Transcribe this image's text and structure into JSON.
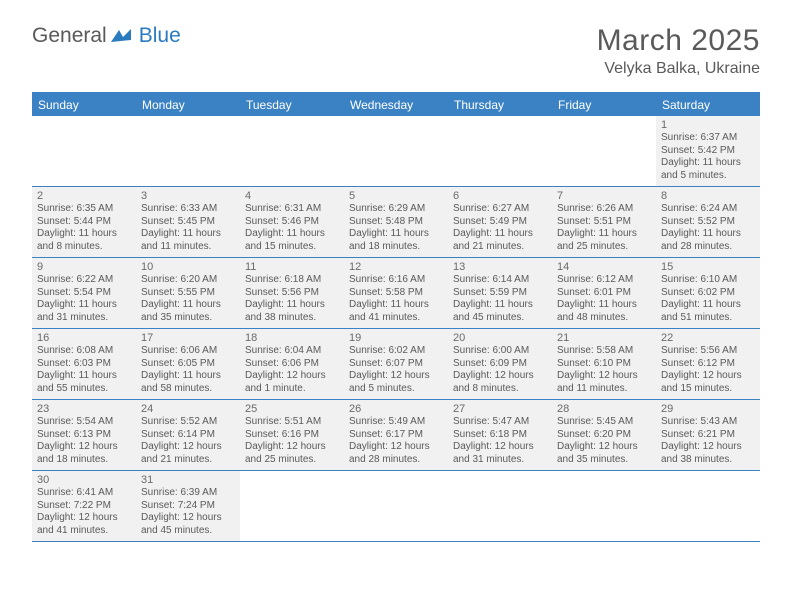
{
  "logo": {
    "text1": "General",
    "text2": "Blue"
  },
  "title": "March 2025",
  "location": "Velyka Balka, Ukraine",
  "colors": {
    "header_blue": "#3b82c4",
    "cell_bg": "#f1f1f1",
    "text": "#5a5a5a",
    "logo_blue": "#2b7bbf"
  },
  "weekdays": [
    "Sunday",
    "Monday",
    "Tuesday",
    "Wednesday",
    "Thursday",
    "Friday",
    "Saturday"
  ],
  "weeks": [
    [
      null,
      null,
      null,
      null,
      null,
      null,
      {
        "n": "1",
        "sr": "Sunrise: 6:37 AM",
        "ss": "Sunset: 5:42 PM",
        "d1": "Daylight: 11 hours",
        "d2": "and 5 minutes."
      }
    ],
    [
      {
        "n": "2",
        "sr": "Sunrise: 6:35 AM",
        "ss": "Sunset: 5:44 PM",
        "d1": "Daylight: 11 hours",
        "d2": "and 8 minutes."
      },
      {
        "n": "3",
        "sr": "Sunrise: 6:33 AM",
        "ss": "Sunset: 5:45 PM",
        "d1": "Daylight: 11 hours",
        "d2": "and 11 minutes."
      },
      {
        "n": "4",
        "sr": "Sunrise: 6:31 AM",
        "ss": "Sunset: 5:46 PM",
        "d1": "Daylight: 11 hours",
        "d2": "and 15 minutes."
      },
      {
        "n": "5",
        "sr": "Sunrise: 6:29 AM",
        "ss": "Sunset: 5:48 PM",
        "d1": "Daylight: 11 hours",
        "d2": "and 18 minutes."
      },
      {
        "n": "6",
        "sr": "Sunrise: 6:27 AM",
        "ss": "Sunset: 5:49 PM",
        "d1": "Daylight: 11 hours",
        "d2": "and 21 minutes."
      },
      {
        "n": "7",
        "sr": "Sunrise: 6:26 AM",
        "ss": "Sunset: 5:51 PM",
        "d1": "Daylight: 11 hours",
        "d2": "and 25 minutes."
      },
      {
        "n": "8",
        "sr": "Sunrise: 6:24 AM",
        "ss": "Sunset: 5:52 PM",
        "d1": "Daylight: 11 hours",
        "d2": "and 28 minutes."
      }
    ],
    [
      {
        "n": "9",
        "sr": "Sunrise: 6:22 AM",
        "ss": "Sunset: 5:54 PM",
        "d1": "Daylight: 11 hours",
        "d2": "and 31 minutes."
      },
      {
        "n": "10",
        "sr": "Sunrise: 6:20 AM",
        "ss": "Sunset: 5:55 PM",
        "d1": "Daylight: 11 hours",
        "d2": "and 35 minutes."
      },
      {
        "n": "11",
        "sr": "Sunrise: 6:18 AM",
        "ss": "Sunset: 5:56 PM",
        "d1": "Daylight: 11 hours",
        "d2": "and 38 minutes."
      },
      {
        "n": "12",
        "sr": "Sunrise: 6:16 AM",
        "ss": "Sunset: 5:58 PM",
        "d1": "Daylight: 11 hours",
        "d2": "and 41 minutes."
      },
      {
        "n": "13",
        "sr": "Sunrise: 6:14 AM",
        "ss": "Sunset: 5:59 PM",
        "d1": "Daylight: 11 hours",
        "d2": "and 45 minutes."
      },
      {
        "n": "14",
        "sr": "Sunrise: 6:12 AM",
        "ss": "Sunset: 6:01 PM",
        "d1": "Daylight: 11 hours",
        "d2": "and 48 minutes."
      },
      {
        "n": "15",
        "sr": "Sunrise: 6:10 AM",
        "ss": "Sunset: 6:02 PM",
        "d1": "Daylight: 11 hours",
        "d2": "and 51 minutes."
      }
    ],
    [
      {
        "n": "16",
        "sr": "Sunrise: 6:08 AM",
        "ss": "Sunset: 6:03 PM",
        "d1": "Daylight: 11 hours",
        "d2": "and 55 minutes."
      },
      {
        "n": "17",
        "sr": "Sunrise: 6:06 AM",
        "ss": "Sunset: 6:05 PM",
        "d1": "Daylight: 11 hours",
        "d2": "and 58 minutes."
      },
      {
        "n": "18",
        "sr": "Sunrise: 6:04 AM",
        "ss": "Sunset: 6:06 PM",
        "d1": "Daylight: 12 hours",
        "d2": "and 1 minute."
      },
      {
        "n": "19",
        "sr": "Sunrise: 6:02 AM",
        "ss": "Sunset: 6:07 PM",
        "d1": "Daylight: 12 hours",
        "d2": "and 5 minutes."
      },
      {
        "n": "20",
        "sr": "Sunrise: 6:00 AM",
        "ss": "Sunset: 6:09 PM",
        "d1": "Daylight: 12 hours",
        "d2": "and 8 minutes."
      },
      {
        "n": "21",
        "sr": "Sunrise: 5:58 AM",
        "ss": "Sunset: 6:10 PM",
        "d1": "Daylight: 12 hours",
        "d2": "and 11 minutes."
      },
      {
        "n": "22",
        "sr": "Sunrise: 5:56 AM",
        "ss": "Sunset: 6:12 PM",
        "d1": "Daylight: 12 hours",
        "d2": "and 15 minutes."
      }
    ],
    [
      {
        "n": "23",
        "sr": "Sunrise: 5:54 AM",
        "ss": "Sunset: 6:13 PM",
        "d1": "Daylight: 12 hours",
        "d2": "and 18 minutes."
      },
      {
        "n": "24",
        "sr": "Sunrise: 5:52 AM",
        "ss": "Sunset: 6:14 PM",
        "d1": "Daylight: 12 hours",
        "d2": "and 21 minutes."
      },
      {
        "n": "25",
        "sr": "Sunrise: 5:51 AM",
        "ss": "Sunset: 6:16 PM",
        "d1": "Daylight: 12 hours",
        "d2": "and 25 minutes."
      },
      {
        "n": "26",
        "sr": "Sunrise: 5:49 AM",
        "ss": "Sunset: 6:17 PM",
        "d1": "Daylight: 12 hours",
        "d2": "and 28 minutes."
      },
      {
        "n": "27",
        "sr": "Sunrise: 5:47 AM",
        "ss": "Sunset: 6:18 PM",
        "d1": "Daylight: 12 hours",
        "d2": "and 31 minutes."
      },
      {
        "n": "28",
        "sr": "Sunrise: 5:45 AM",
        "ss": "Sunset: 6:20 PM",
        "d1": "Daylight: 12 hours",
        "d2": "and 35 minutes."
      },
      {
        "n": "29",
        "sr": "Sunrise: 5:43 AM",
        "ss": "Sunset: 6:21 PM",
        "d1": "Daylight: 12 hours",
        "d2": "and 38 minutes."
      }
    ],
    [
      {
        "n": "30",
        "sr": "Sunrise: 6:41 AM",
        "ss": "Sunset: 7:22 PM",
        "d1": "Daylight: 12 hours",
        "d2": "and 41 minutes."
      },
      {
        "n": "31",
        "sr": "Sunrise: 6:39 AM",
        "ss": "Sunset: 7:24 PM",
        "d1": "Daylight: 12 hours",
        "d2": "and 45 minutes."
      },
      null,
      null,
      null,
      null,
      null
    ]
  ]
}
